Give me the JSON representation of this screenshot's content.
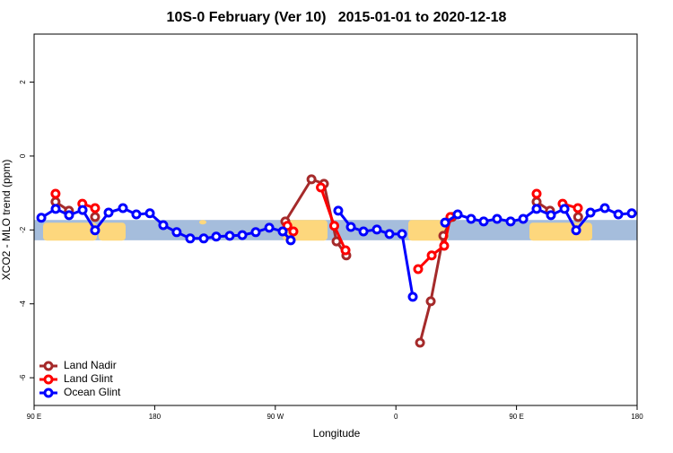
{
  "chart_data": {
    "type": "line",
    "title": "10S-0 February (Ver 10)   2015-01-01 to 2020-12-18",
    "xlabel": "Longitude",
    "ylabel": "XCO2 - MLO trend (ppm)",
    "xlim": [
      90,
      540
    ],
    "ylim": [
      -6.75,
      3.3
    ],
    "xticks": [
      {
        "value": 90,
        "label": "90 E"
      },
      {
        "value": 180,
        "label": "180"
      },
      {
        "value": 270,
        "label": "90 W"
      },
      {
        "value": 360,
        "label": "0"
      },
      {
        "value": 450,
        "label": "90 E"
      },
      {
        "value": 540,
        "label": "180"
      }
    ],
    "yticks": [
      2,
      0,
      -2,
      -4,
      -6
    ],
    "band_ylim": [
      -2.28,
      -1.73
    ],
    "band_color": "#a5bddc",
    "land_color": "#fdd77d",
    "legend": "bottom-left",
    "series": [
      {
        "name": "Land Nadir",
        "color": "#a52a2a",
        "x": [
          106,
          116,
          null,
          135.5,
          null,
          277.5,
          297,
          306.3,
          315.7,
          323,
          null,
          378,
          386,
          395.4,
          402,
          null,
          465,
          475,
          null,
          496
        ],
        "values": [
          -1.24,
          -1.48,
          null,
          -1.65,
          null,
          -1.77,
          -0.63,
          -0.75,
          -2.31,
          -2.69,
          null,
          -5.05,
          -3.93,
          -2.16,
          -1.65,
          null,
          -1.24,
          -1.48,
          null,
          -1.65
        ]
      },
      {
        "name": "Land Glint",
        "color": "#ff0000",
        "x": [
          106,
          null,
          126,
          135.5,
          null,
          279,
          283.5,
          null,
          304,
          314,
          322.4,
          null,
          376.6,
          386.7,
          396,
          400.7,
          null,
          465,
          null,
          484.4,
          495.8
        ],
        "values": [
          -1.02,
          null,
          -1.29,
          -1.41,
          null,
          -1.89,
          -2.04,
          null,
          -0.85,
          -1.89,
          -2.55,
          null,
          -3.06,
          -2.69,
          -2.43,
          -1.65,
          null,
          -1.02,
          null,
          -1.29,
          -1.41
        ]
      },
      {
        "name": "Ocean Glint",
        "color": "#0000ff",
        "x": [
          95.4,
          106.1,
          116.1,
          126.2,
          135.5,
          145.6,
          156.3,
          166.3,
          176.4,
          186.4,
          196.4,
          206.5,
          216.6,
          225.9,
          236,
          245.4,
          255.4,
          265.5,
          275.5,
          281.5,
          null,
          317,
          326.4,
          335.8,
          345.8,
          355.2,
          364.6,
          372.6,
          null,
          396.7,
          406.1,
          416.1,
          425.5,
          435.5,
          445.6,
          455,
          465,
          475.7,
          485.8,
          494.5,
          505.2,
          515.9,
          526,
          536
        ],
        "values": [
          -1.67,
          -1.43,
          -1.6,
          -1.46,
          -2.01,
          -1.53,
          -1.41,
          -1.58,
          -1.55,
          -1.87,
          -2.06,
          -2.23,
          -2.23,
          -2.18,
          -2.16,
          -2.14,
          -2.06,
          -1.94,
          -2.04,
          -2.28,
          null,
          -1.48,
          -1.92,
          -2.04,
          -1.99,
          -2.11,
          -2.11,
          -3.81,
          null,
          -1.8,
          -1.58,
          -1.7,
          -1.77,
          -1.7,
          -1.77,
          -1.7,
          -1.43,
          -1.6,
          -1.43,
          -2.01,
          -1.53,
          -1.41,
          -1.58,
          -1.55
        ]
      }
    ]
  }
}
